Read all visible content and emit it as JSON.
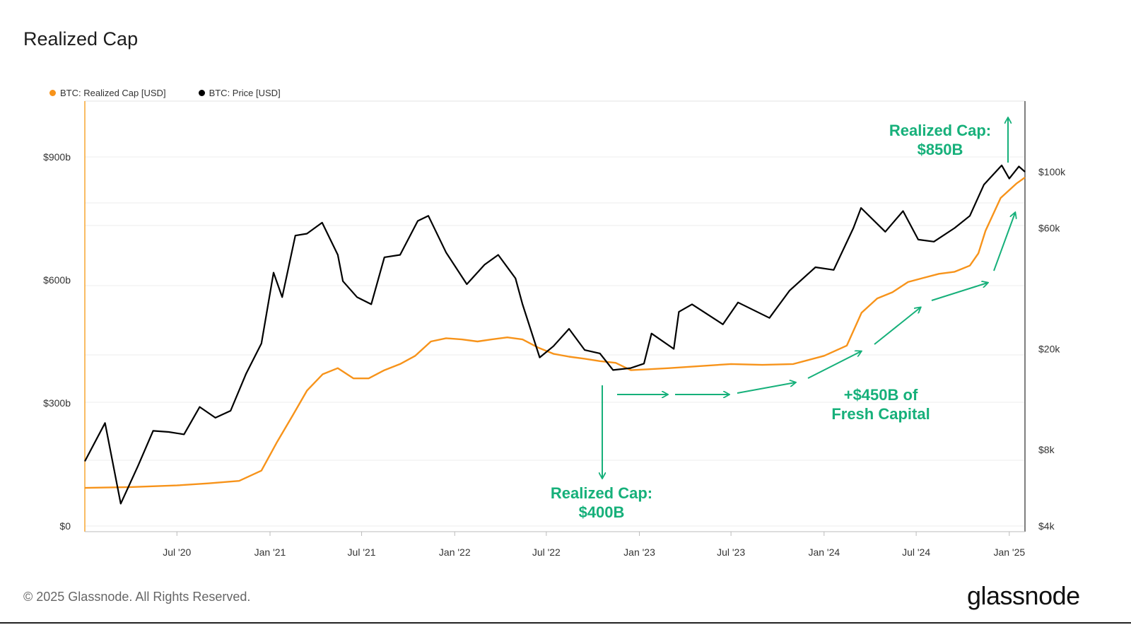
{
  "title": "Realized Cap",
  "footer": "© 2025 Glassnode. All Rights Reserved.",
  "brand": "glassnode",
  "chart_data": {
    "type": "line",
    "title": "Realized Cap",
    "xlabel": "",
    "ylabel": "",
    "x_ticks": [
      "Jul '20",
      "Jan '21",
      "Jul '21",
      "Jan '22",
      "Jul '22",
      "Jan '23",
      "Jul '23",
      "Jan '24",
      "Jul '24",
      "Jan '25"
    ],
    "left_axis": {
      "ticks": [
        "$0",
        "$300b",
        "$600b",
        "$900b"
      ],
      "ylim": [
        0,
        1050
      ],
      "unit": "billion USD"
    },
    "right_axis": {
      "ticks": [
        "$4k",
        "$8k",
        "$20k",
        "$60k",
        "$100k"
      ],
      "scale": "log",
      "unit": "USD"
    },
    "grid": true,
    "legend_placement": "top-left",
    "series": [
      {
        "name": "BTC: Realized Cap [USD]",
        "axis": "left",
        "color": "#f7931a",
        "points": [
          [
            "2020-01-01",
            93
          ],
          [
            "2020-04-01",
            95
          ],
          [
            "2020-07-01",
            99
          ],
          [
            "2020-09-01",
            104
          ],
          [
            "2020-11-01",
            110
          ],
          [
            "2020-12-15",
            135
          ],
          [
            "2021-01-15",
            205
          ],
          [
            "2021-02-15",
            270
          ],
          [
            "2021-03-15",
            330
          ],
          [
            "2021-04-15",
            370
          ],
          [
            "2021-05-15",
            385
          ],
          [
            "2021-06-15",
            360
          ],
          [
            "2021-07-15",
            360
          ],
          [
            "2021-08-15",
            380
          ],
          [
            "2021-09-15",
            395
          ],
          [
            "2021-10-15",
            415
          ],
          [
            "2021-11-15",
            450
          ],
          [
            "2021-12-15",
            458
          ],
          [
            "2022-01-15",
            455
          ],
          [
            "2022-02-15",
            450
          ],
          [
            "2022-03-15",
            455
          ],
          [
            "2022-04-15",
            460
          ],
          [
            "2022-05-15",
            455
          ],
          [
            "2022-06-15",
            435
          ],
          [
            "2022-07-15",
            420
          ],
          [
            "2022-08-15",
            413
          ],
          [
            "2022-09-15",
            408
          ],
          [
            "2022-10-15",
            402
          ],
          [
            "2022-11-15",
            398
          ],
          [
            "2022-12-15",
            380
          ],
          [
            "2023-01-15",
            382
          ],
          [
            "2023-03-01",
            385
          ],
          [
            "2023-05-01",
            390
          ],
          [
            "2023-07-01",
            395
          ],
          [
            "2023-09-01",
            393
          ],
          [
            "2023-11-01",
            395
          ],
          [
            "2024-01-01",
            415
          ],
          [
            "2024-02-15",
            440
          ],
          [
            "2024-03-15",
            520
          ],
          [
            "2024-04-15",
            555
          ],
          [
            "2024-05-15",
            570
          ],
          [
            "2024-06-15",
            595
          ],
          [
            "2024-07-15",
            605
          ],
          [
            "2024-08-15",
            615
          ],
          [
            "2024-09-15",
            620
          ],
          [
            "2024-10-15",
            635
          ],
          [
            "2024-11-01",
            665
          ],
          [
            "2024-11-15",
            720
          ],
          [
            "2024-12-15",
            800
          ],
          [
            "2025-01-15",
            835
          ],
          [
            "2025-02-01",
            850
          ]
        ]
      },
      {
        "name": "BTC: Price [USD]",
        "axis": "right",
        "color": "#000000",
        "points": [
          [
            "2020-01-01",
            7200
          ],
          [
            "2020-02-10",
            10200
          ],
          [
            "2020-03-12",
            4900
          ],
          [
            "2020-04-15",
            6900
          ],
          [
            "2020-05-15",
            9500
          ],
          [
            "2020-06-15",
            9400
          ],
          [
            "2020-07-15",
            9200
          ],
          [
            "2020-08-15",
            11800
          ],
          [
            "2020-09-15",
            10700
          ],
          [
            "2020-10-15",
            11400
          ],
          [
            "2020-11-15",
            16000
          ],
          [
            "2020-12-15",
            21000
          ],
          [
            "2021-01-08",
            40000
          ],
          [
            "2021-01-25",
            32000
          ],
          [
            "2021-02-20",
            56000
          ],
          [
            "2021-03-15",
            57000
          ],
          [
            "2021-04-14",
            63000
          ],
          [
            "2021-05-15",
            47000
          ],
          [
            "2021-05-25",
            37000
          ],
          [
            "2021-06-22",
            32000
          ],
          [
            "2021-07-20",
            30000
          ],
          [
            "2021-08-15",
            46000
          ],
          [
            "2021-09-15",
            47000
          ],
          [
            "2021-10-20",
            64000
          ],
          [
            "2021-11-10",
            67000
          ],
          [
            "2021-12-15",
            48000
          ],
          [
            "2022-01-25",
            36000
          ],
          [
            "2022-03-01",
            43000
          ],
          [
            "2022-03-28",
            47000
          ],
          [
            "2022-05-01",
            38000
          ],
          [
            "2022-05-15",
            30000
          ],
          [
            "2022-06-18",
            18500
          ],
          [
            "2022-07-15",
            20500
          ],
          [
            "2022-08-15",
            24000
          ],
          [
            "2022-09-15",
            19800
          ],
          [
            "2022-10-15",
            19200
          ],
          [
            "2022-11-10",
            16500
          ],
          [
            "2022-12-15",
            16800
          ],
          [
            "2023-01-10",
            17500
          ],
          [
            "2023-01-25",
            23000
          ],
          [
            "2023-03-10",
            20000
          ],
          [
            "2023-03-20",
            28000
          ],
          [
            "2023-04-15",
            30000
          ],
          [
            "2023-06-15",
            25000
          ],
          [
            "2023-07-15",
            30500
          ],
          [
            "2023-09-15",
            26500
          ],
          [
            "2023-10-25",
            34000
          ],
          [
            "2023-12-15",
            42000
          ],
          [
            "2024-01-20",
            41000
          ],
          [
            "2024-02-28",
            60000
          ],
          [
            "2024-03-14",
            72000
          ],
          [
            "2024-05-01",
            58000
          ],
          [
            "2024-06-05",
            70000
          ],
          [
            "2024-07-05",
            54000
          ],
          [
            "2024-08-05",
            53000
          ],
          [
            "2024-09-15",
            60000
          ],
          [
            "2024-10-15",
            67000
          ],
          [
            "2024-11-12",
            89000
          ],
          [
            "2024-12-17",
            106000
          ],
          [
            "2025-01-01",
            94000
          ],
          [
            "2025-01-20",
            105000
          ],
          [
            "2025-02-01",
            100000
          ]
        ]
      }
    ],
    "annotations": [
      {
        "lines": [
          "Realized Cap:",
          "$400B"
        ]
      },
      {
        "lines": [
          "+$450B of",
          "Fresh Capital"
        ]
      },
      {
        "lines": [
          "Realized Cap:",
          "$850B"
        ]
      }
    ],
    "annotation_color": "#16b07a"
  }
}
